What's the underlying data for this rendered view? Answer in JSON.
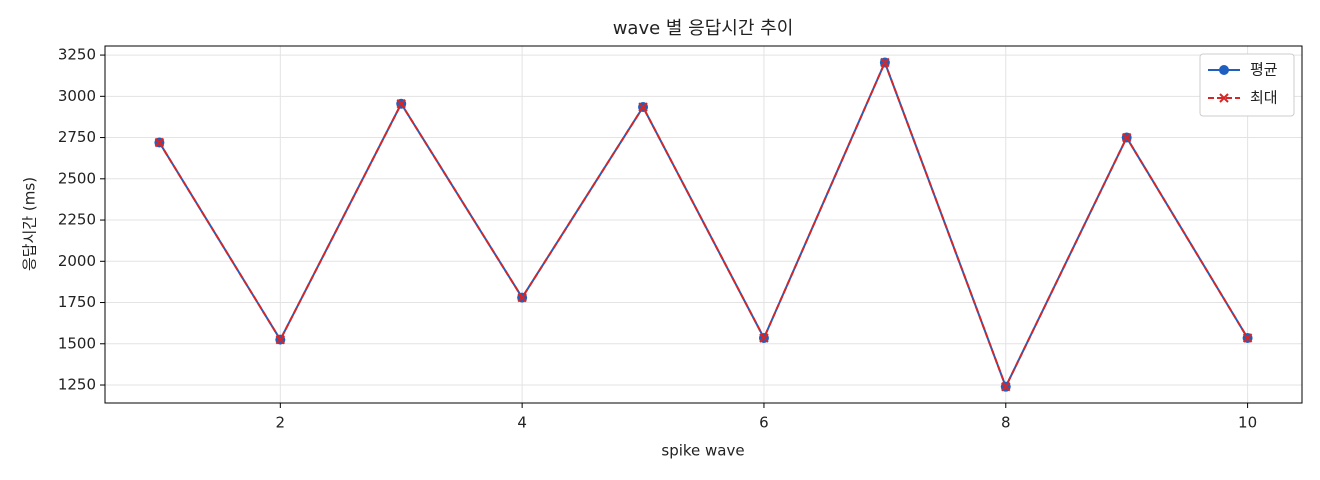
{
  "chart_data": {
    "type": "line",
    "title": "wave 별 응답시간 추이",
    "xlabel": "spike wave",
    "ylabel": "응답시간 (ms)",
    "x": [
      1,
      2,
      3,
      4,
      5,
      6,
      7,
      8,
      9,
      10
    ],
    "series": [
      {
        "name": "평균",
        "color": "#1f5fbf",
        "marker": "circle",
        "dash": false,
        "values": [
          2720,
          1525,
          2955,
          1780,
          2935,
          1535,
          3205,
          1240,
          2750,
          1535
        ]
      },
      {
        "name": "최대",
        "color": "#d62728",
        "marker": "x",
        "dash": true,
        "values": [
          2720,
          1525,
          2955,
          1780,
          2935,
          1535,
          3205,
          1240,
          2750,
          1535
        ]
      }
    ],
    "xlim": [
      0.55,
      10.45
    ],
    "xticks": [
      2,
      4,
      6,
      8,
      10
    ],
    "ylim": [
      1141,
      3305
    ],
    "yticks": [
      1250,
      1500,
      1750,
      2000,
      2250,
      2500,
      2750,
      3000,
      3250
    ],
    "grid": true,
    "legend": "upper right"
  }
}
